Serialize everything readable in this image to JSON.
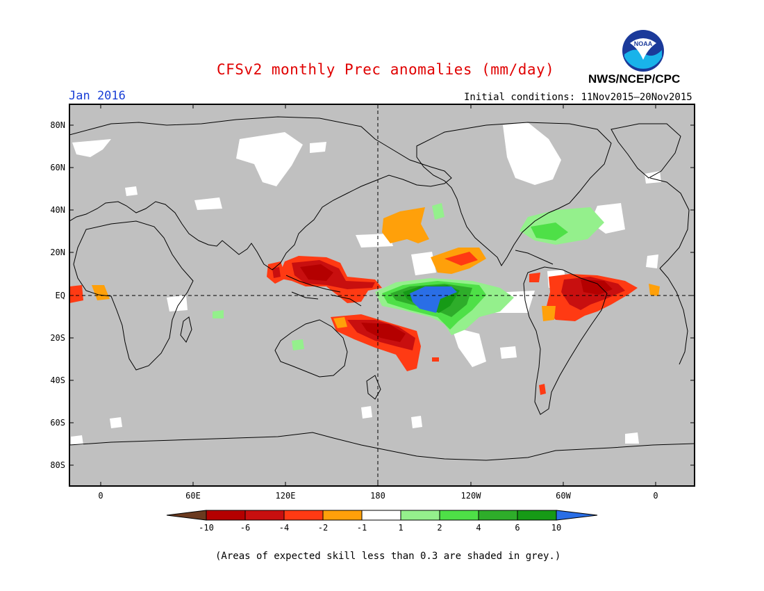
{
  "header": {
    "title": "CFSv2 monthly Prec anomalies (mm/day)",
    "month": "Jan 2016",
    "initial_conditions": "Initial conditions: 11Nov2015–20Nov2015",
    "agency": "NWS/NCEP/CPC",
    "logo_text": "NOAA",
    "logo_icon": "noaa-logo"
  },
  "map": {
    "lat_labels": [
      "80N",
      "60N",
      "40N",
      "20N",
      "EQ",
      "20S",
      "40S",
      "60S",
      "80S"
    ],
    "lon_labels": [
      "0",
      "60E",
      "120E",
      "180",
      "120W",
      "60W",
      "0"
    ],
    "background_color": "#c0c0c0",
    "dashed_reference_lines": [
      "EQ",
      "180"
    ]
  },
  "colorbar": {
    "tick_labels": [
      "-10",
      "-6",
      "-4",
      "-2",
      "-1",
      "1",
      "2",
      "4",
      "6",
      "10"
    ],
    "colors": [
      "#6b3a1f",
      "#b40000",
      "#c80f0f",
      "#ff3a13",
      "#ffa00a",
      "#ffffff",
      "#94f08c",
      "#4ee047",
      "#2ead2a",
      "#169a16",
      "#2a6ee6"
    ]
  },
  "footnote": "(Areas of expected skill less than 0.3 are shaded in grey.)"
}
